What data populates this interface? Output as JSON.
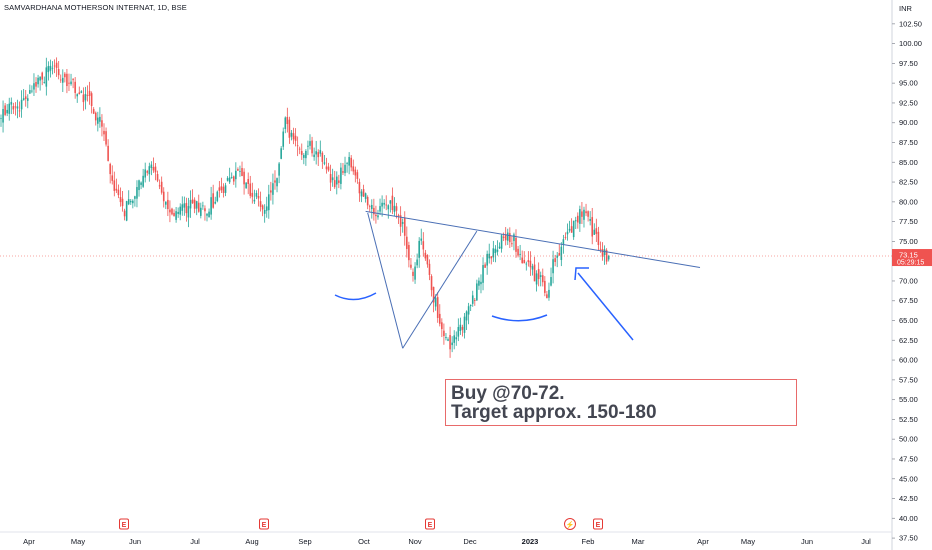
{
  "header": {
    "title": "SAMVARDHANA MOTHERSON INTERNAT, 1D, BSE"
  },
  "currency": "INR",
  "note": {
    "line1": "Buy @70-72.",
    "line2": "Target approx. 150-180"
  },
  "colors": {
    "up": "#26a69a",
    "down": "#ef5350",
    "trend": "#2962ff",
    "box_border": "#e86a6a",
    "price_tag": "#ef5350",
    "axis_text": "#131722"
  },
  "chart_data": {
    "type": "candlestick",
    "title": "SAMVARDHANA MOTHERSON INTERNAT, 1D, BSE",
    "ylim": [
      36.5,
      104.5
    ],
    "y_ticks": [
      "37.50",
      "40.00",
      "42.50",
      "45.00",
      "47.50",
      "50.00",
      "52.50",
      "55.00",
      "57.50",
      "60.00",
      "62.50",
      "65.00",
      "67.50",
      "70.00",
      "72.50",
      "75.00",
      "77.50",
      "80.00",
      "82.50",
      "85.00",
      "87.50",
      "90.00",
      "92.50",
      "95.00",
      "97.50",
      "100.00",
      "102.50"
    ],
    "x_ticks": [
      "Apr",
      "May",
      "Jun",
      "Jul",
      "Aug",
      "Sep",
      "Oct",
      "Nov",
      "Dec",
      "2023",
      "Feb",
      "Mar",
      "Apr",
      "May",
      "Jun",
      "Jul"
    ],
    "last_price": "73.15",
    "countdown": "05:29:15",
    "price_path": [
      {
        "x": 0,
        "y": 91.5
      },
      {
        "x": 10,
        "y": 92
      },
      {
        "x": 20,
        "y": 95.5
      },
      {
        "x": 25,
        "y": 97
      },
      {
        "x": 33,
        "y": 95
      },
      {
        "x": 42,
        "y": 93
      },
      {
        "x": 48,
        "y": 90
      },
      {
        "x": 55,
        "y": 82
      },
      {
        "x": 60,
        "y": 79
      },
      {
        "x": 66,
        "y": 82
      },
      {
        "x": 72,
        "y": 85
      },
      {
        "x": 78,
        "y": 81
      },
      {
        "x": 85,
        "y": 78
      },
      {
        "x": 92,
        "y": 80
      },
      {
        "x": 100,
        "y": 79
      },
      {
        "x": 108,
        "y": 82
      },
      {
        "x": 115,
        "y": 84
      },
      {
        "x": 120,
        "y": 82
      },
      {
        "x": 127,
        "y": 79
      },
      {
        "x": 133,
        "y": 82
      },
      {
        "x": 138,
        "y": 90
      },
      {
        "x": 145,
        "y": 86
      },
      {
        "x": 150,
        "y": 87
      },
      {
        "x": 156,
        "y": 85.5
      },
      {
        "x": 162,
        "y": 82
      },
      {
        "x": 168,
        "y": 85.5
      },
      {
        "x": 175,
        "y": 81
      },
      {
        "x": 182,
        "y": 79
      },
      {
        "x": 188,
        "y": 80
      },
      {
        "x": 195,
        "y": 77
      },
      {
        "x": 200,
        "y": 71
      },
      {
        "x": 204,
        "y": 76
      },
      {
        "x": 210,
        "y": 68
      },
      {
        "x": 214,
        "y": 64
      },
      {
        "x": 218,
        "y": 62
      },
      {
        "x": 223,
        "y": 64
      },
      {
        "x": 230,
        "y": 68
      },
      {
        "x": 236,
        "y": 73
      },
      {
        "x": 242,
        "y": 75
      },
      {
        "x": 248,
        "y": 75.5
      },
      {
        "x": 253,
        "y": 73
      },
      {
        "x": 258,
        "y": 71
      },
      {
        "x": 262,
        "y": 70
      },
      {
        "x": 265,
        "y": 67
      },
      {
        "x": 268,
        "y": 72
      },
      {
        "x": 273,
        "y": 75
      },
      {
        "x": 278,
        "y": 77
      },
      {
        "x": 282,
        "y": 79
      },
      {
        "x": 286,
        "y": 77
      },
      {
        "x": 291,
        "y": 74
      },
      {
        "x": 295,
        "y": 73
      }
    ],
    "annotations": [
      "descending trendline",
      "ascending trendline",
      "neckline arcs",
      "arrow"
    ]
  },
  "event_markers": [
    "E",
    "E",
    "E",
    "split",
    "E"
  ]
}
